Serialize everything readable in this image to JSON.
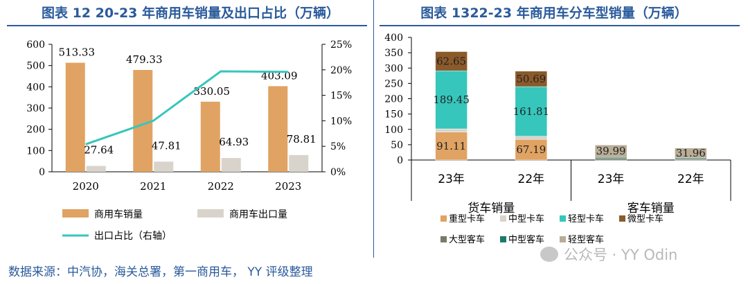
{
  "source": "数据来源：中汽协，海关总署，第一商用车， YY 评级整理",
  "watermark": "公众号 · YY Odin",
  "chart_data": [
    {
      "type": "bar+line",
      "title": "图表 12 20-23 年商用车销量及出口占比（万辆）",
      "categories": [
        "2020",
        "2021",
        "2022",
        "2023"
      ],
      "ylim": [
        0,
        600
      ],
      "yticks": [
        "0",
        "100",
        "200",
        "300",
        "400",
        "500",
        "600"
      ],
      "y2lim": [
        0,
        25
      ],
      "y2ticks": [
        "0%",
        "5%",
        "10%",
        "15%",
        "20%",
        "25%"
      ],
      "series": [
        {
          "name": "商用车销量",
          "kind": "bar",
          "color": "#e0a363",
          "values": [
            513.33,
            479.33,
            330.05,
            403.09
          ],
          "labels": [
            "513.33",
            "479.33",
            "330.05",
            "403.09"
          ]
        },
        {
          "name": "商用车出口量",
          "kind": "bar",
          "color": "#d9d4cb",
          "values": [
            27.64,
            47.81,
            64.93,
            78.81
          ],
          "labels": [
            "27.64",
            "47.81",
            "64.93",
            "78.81"
          ]
        },
        {
          "name": "出口占比（右轴）",
          "kind": "line",
          "axis": "right",
          "color": "#36c6bb",
          "values": [
            5.4,
            10.0,
            19.7,
            19.6
          ]
        }
      ]
    },
    {
      "type": "stacked-bar",
      "title": "图表 1322-23 年商用车分车型销量（万辆）",
      "ylim": [
        0,
        400
      ],
      "yticks": [
        "0",
        "50",
        "100",
        "150",
        "200",
        "250",
        "300",
        "350",
        "400"
      ],
      "categories": [
        "23年",
        "22年",
        "23年",
        "22年"
      ],
      "groups": [
        {
          "label": "货车销量",
          "categories": [
            "23年",
            "22年"
          ]
        },
        {
          "label": "客车销量",
          "categories": [
            "23年",
            "22年"
          ]
        }
      ],
      "series": [
        {
          "name": "重型卡车",
          "color": "#e0a363",
          "values": [
            91.11,
            67.19,
            0,
            0
          ],
          "labels": [
            "91.11",
            "67.19",
            "",
            ""
          ]
        },
        {
          "name": "中型卡车",
          "color": "#d9d4cb",
          "values": [
            10.5,
            10.3,
            0,
            0
          ],
          "labels": [
            "",
            "",
            "",
            ""
          ]
        },
        {
          "name": "轻型卡车",
          "color": "#36c6bb",
          "values": [
            189.45,
            161.81,
            0,
            0
          ],
          "labels": [
            "189.45",
            "161.81",
            "",
            ""
          ]
        },
        {
          "name": "微型卡车",
          "color": "#8b5a2b",
          "values": [
            62.65,
            50.69,
            0,
            0
          ],
          "labels": [
            "62.65",
            "50.69",
            "",
            ""
          ]
        },
        {
          "name": "大型客车",
          "color": "#7a7a68",
          "values": [
            0,
            0,
            5,
            4
          ],
          "labels": [
            "",
            "",
            "",
            ""
          ]
        },
        {
          "name": "中型客车",
          "color": "#1e7a68",
          "values": [
            0,
            0,
            4,
            3
          ],
          "labels": [
            "",
            "",
            "",
            ""
          ]
        },
        {
          "name": "轻型客车",
          "color": "#b9ad96",
          "values": [
            0,
            0,
            39.99,
            31.96
          ],
          "labels": [
            "",
            "",
            "39.99",
            "31.96"
          ]
        }
      ]
    }
  ]
}
